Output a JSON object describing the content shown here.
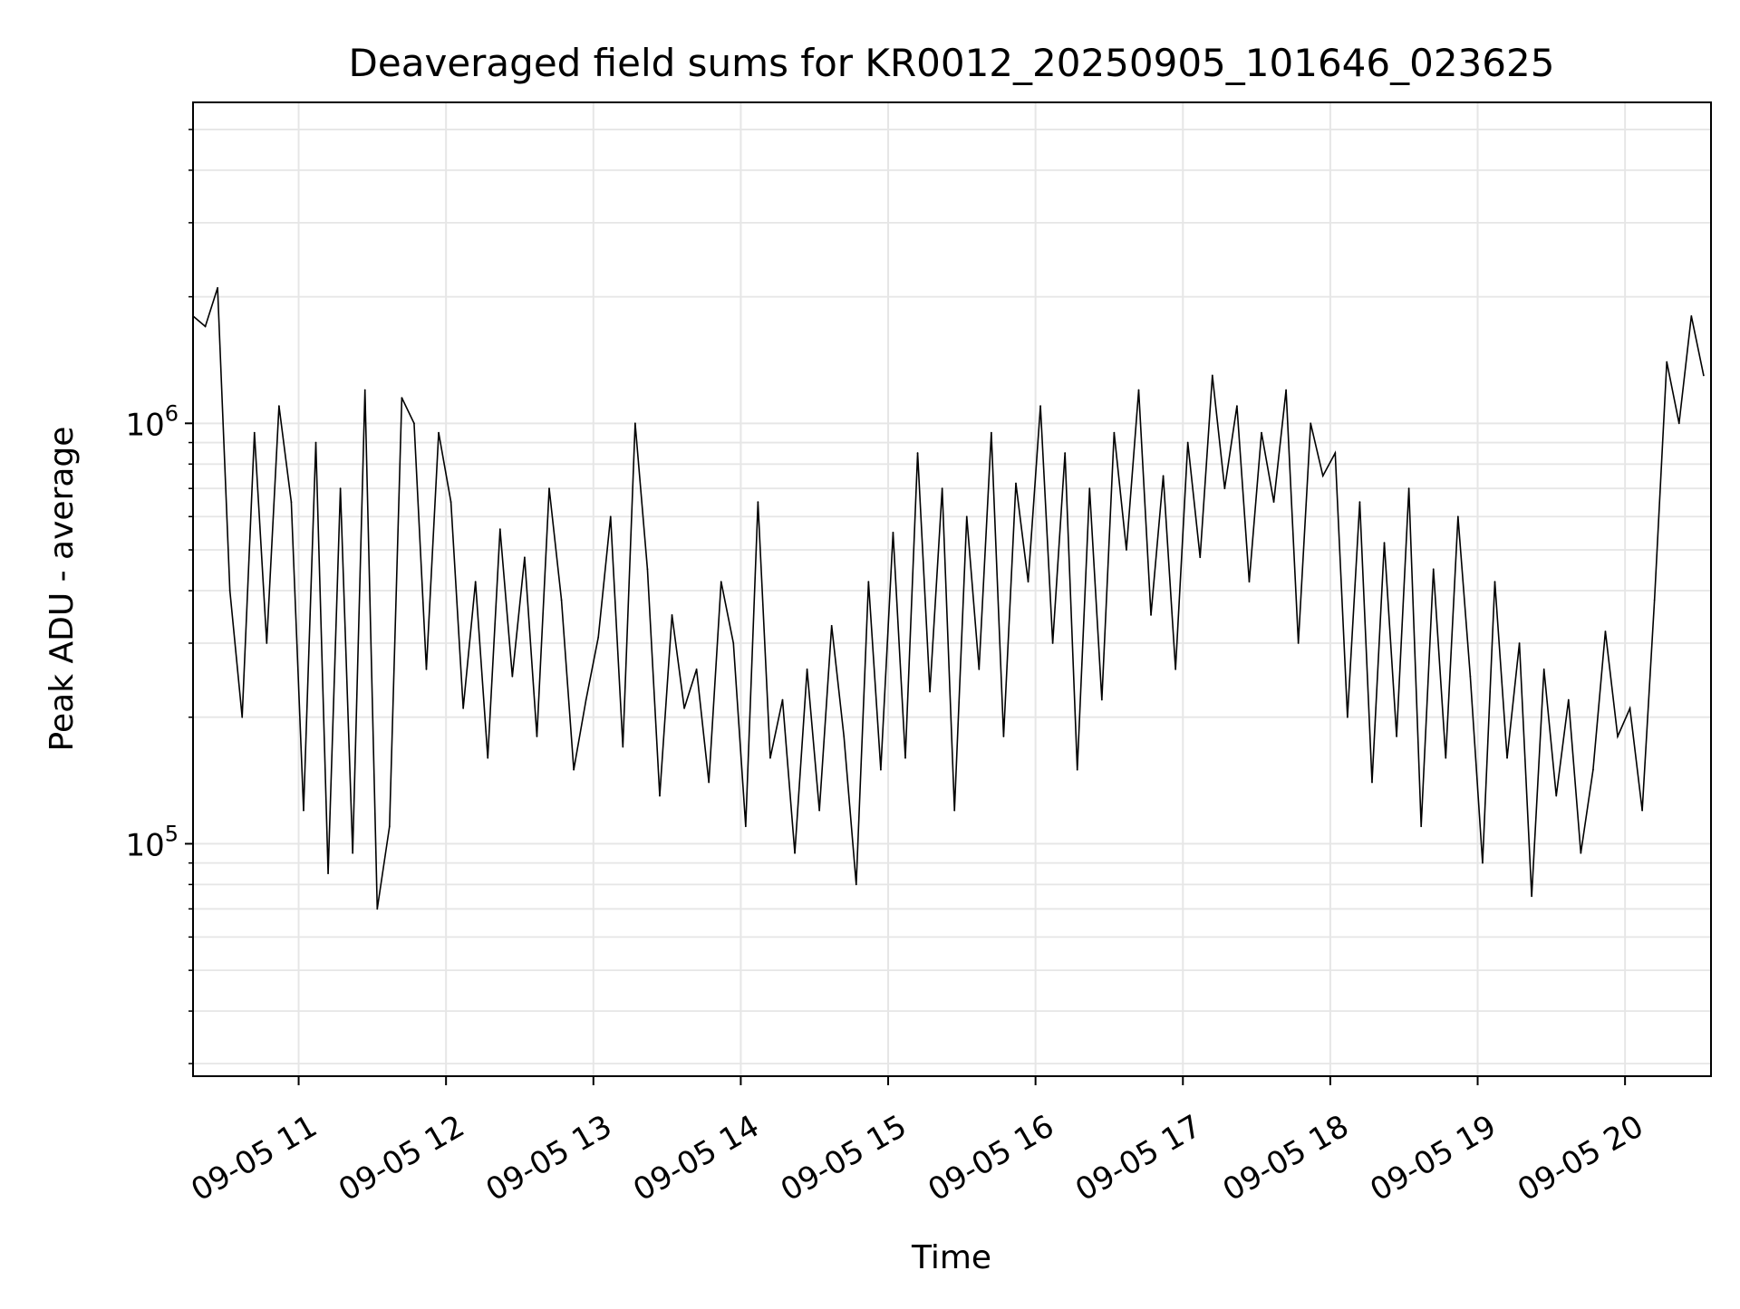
{
  "chart_data": {
    "type": "line",
    "title": "Deaveraged field sums for KR0012_20250905_101646_023625",
    "xlabel": "Time",
    "ylabel": "Peak ADU - average",
    "yscale": "log",
    "ylim": [
      28000,
      5800000
    ],
    "xlim": [
      "2025-09-05 10:17",
      "2025-09-05 20:35"
    ],
    "grid": true,
    "legend": "none",
    "x_ticks": [
      {
        "at": "2025-09-05 11:00",
        "label": "09-05 11"
      },
      {
        "at": "2025-09-05 12:00",
        "label": "09-05 12"
      },
      {
        "at": "2025-09-05 13:00",
        "label": "09-05 13"
      },
      {
        "at": "2025-09-05 14:00",
        "label": "09-05 14"
      },
      {
        "at": "2025-09-05 15:00",
        "label": "09-05 15"
      },
      {
        "at": "2025-09-05 16:00",
        "label": "09-05 16"
      },
      {
        "at": "2025-09-05 17:00",
        "label": "09-05 17"
      },
      {
        "at": "2025-09-05 18:00",
        "label": "09-05 18"
      },
      {
        "at": "2025-09-05 19:00",
        "label": "09-05 19"
      },
      {
        "at": "2025-09-05 20:00",
        "label": "09-05 20"
      }
    ],
    "y_ticks": [
      {
        "value": 100000,
        "label": "10",
        "exp": "5"
      },
      {
        "value": 1000000,
        "label": "10",
        "exp": "6"
      }
    ],
    "line_color": "#000000",
    "grid_color": "#e6e6e6",
    "series": [
      {
        "x": [
          "2025-09-05 10:17",
          "2025-09-05 10:22",
          "2025-09-05 10:27",
          "2025-09-05 10:32",
          "2025-09-05 10:37",
          "2025-09-05 10:42",
          "2025-09-05 10:47",
          "2025-09-05 10:52",
          "2025-09-05 10:57",
          "2025-09-05 11:02",
          "2025-09-05 11:07",
          "2025-09-05 11:12",
          "2025-09-05 11:17",
          "2025-09-05 11:22",
          "2025-09-05 11:27",
          "2025-09-05 11:32",
          "2025-09-05 11:37",
          "2025-09-05 11:42",
          "2025-09-05 11:47",
          "2025-09-05 11:52",
          "2025-09-05 11:57",
          "2025-09-05 12:02",
          "2025-09-05 12:07",
          "2025-09-05 12:12",
          "2025-09-05 12:17",
          "2025-09-05 12:22",
          "2025-09-05 12:27",
          "2025-09-05 12:32",
          "2025-09-05 12:37",
          "2025-09-05 12:42",
          "2025-09-05 12:47",
          "2025-09-05 12:52",
          "2025-09-05 12:57",
          "2025-09-05 13:02",
          "2025-09-05 13:07",
          "2025-09-05 13:12",
          "2025-09-05 13:17",
          "2025-09-05 13:22",
          "2025-09-05 13:27",
          "2025-09-05 13:32",
          "2025-09-05 13:37",
          "2025-09-05 13:42",
          "2025-09-05 13:47",
          "2025-09-05 13:52",
          "2025-09-05 13:57",
          "2025-09-05 14:02",
          "2025-09-05 14:07",
          "2025-09-05 14:12",
          "2025-09-05 14:17",
          "2025-09-05 14:22",
          "2025-09-05 14:27",
          "2025-09-05 14:32",
          "2025-09-05 14:37",
          "2025-09-05 14:42",
          "2025-09-05 14:47",
          "2025-09-05 14:52",
          "2025-09-05 14:57",
          "2025-09-05 15:02",
          "2025-09-05 15:07",
          "2025-09-05 15:12",
          "2025-09-05 15:17",
          "2025-09-05 15:22",
          "2025-09-05 15:27",
          "2025-09-05 15:32",
          "2025-09-05 15:37",
          "2025-09-05 15:42",
          "2025-09-05 15:47",
          "2025-09-05 15:52",
          "2025-09-05 15:57",
          "2025-09-05 16:02",
          "2025-09-05 16:07",
          "2025-09-05 16:12",
          "2025-09-05 16:17",
          "2025-09-05 16:22",
          "2025-09-05 16:27",
          "2025-09-05 16:32",
          "2025-09-05 16:37",
          "2025-09-05 16:42",
          "2025-09-05 16:47",
          "2025-09-05 16:52",
          "2025-09-05 16:57",
          "2025-09-05 17:02",
          "2025-09-05 17:07",
          "2025-09-05 17:12",
          "2025-09-05 17:17",
          "2025-09-05 17:22",
          "2025-09-05 17:27",
          "2025-09-05 17:32",
          "2025-09-05 17:37",
          "2025-09-05 17:42",
          "2025-09-05 17:47",
          "2025-09-05 17:52",
          "2025-09-05 17:57",
          "2025-09-05 18:02",
          "2025-09-05 18:07",
          "2025-09-05 18:12",
          "2025-09-05 18:17",
          "2025-09-05 18:22",
          "2025-09-05 18:27",
          "2025-09-05 18:32",
          "2025-09-05 18:37",
          "2025-09-05 18:42",
          "2025-09-05 18:47",
          "2025-09-05 18:52",
          "2025-09-05 18:57",
          "2025-09-05 19:02",
          "2025-09-05 19:07",
          "2025-09-05 19:12",
          "2025-09-05 19:17",
          "2025-09-05 19:22",
          "2025-09-05 19:27",
          "2025-09-05 19:32",
          "2025-09-05 19:37",
          "2025-09-05 19:42",
          "2025-09-05 19:47",
          "2025-09-05 19:52",
          "2025-09-05 19:57",
          "2025-09-05 20:02",
          "2025-09-05 20:07",
          "2025-09-05 20:12",
          "2025-09-05 20:17",
          "2025-09-05 20:22",
          "2025-09-05 20:27",
          "2025-09-05 20:32"
        ],
        "y": [
          1800000,
          1700000,
          2100000,
          400000,
          200000,
          950000,
          300000,
          1100000,
          650000,
          120000,
          900000,
          85000,
          700000,
          95000,
          1200000,
          70000,
          110000,
          1150000,
          1000000,
          260000,
          950000,
          650000,
          210000,
          420000,
          160000,
          560000,
          250000,
          480000,
          180000,
          700000,
          380000,
          150000,
          220000,
          310000,
          600000,
          170000,
          1000000,
          450000,
          130000,
          350000,
          210000,
          260000,
          140000,
          420000,
          300000,
          110000,
          650000,
          160000,
          220000,
          95000,
          260000,
          120000,
          330000,
          180000,
          80000,
          420000,
          150000,
          550000,
          160000,
          850000,
          230000,
          700000,
          120000,
          600000,
          260000,
          950000,
          180000,
          720000,
          420000,
          1100000,
          300000,
          850000,
          150000,
          700000,
          220000,
          950000,
          500000,
          1200000,
          350000,
          750000,
          260000,
          900000,
          480000,
          1300000,
          700000,
          1100000,
          420000,
          950000,
          650000,
          1200000,
          300000,
          1000000,
          750000,
          850000,
          200000,
          650000,
          140000,
          520000,
          180000,
          700000,
          110000,
          450000,
          160000,
          600000,
          250000,
          90000,
          420000,
          160000,
          300000,
          75000,
          260000,
          130000,
          220000,
          95000,
          150000,
          320000,
          180000,
          210000,
          120000,
          380000,
          1400000,
          1000000,
          1800000,
          1300000
        ]
      }
    ]
  }
}
